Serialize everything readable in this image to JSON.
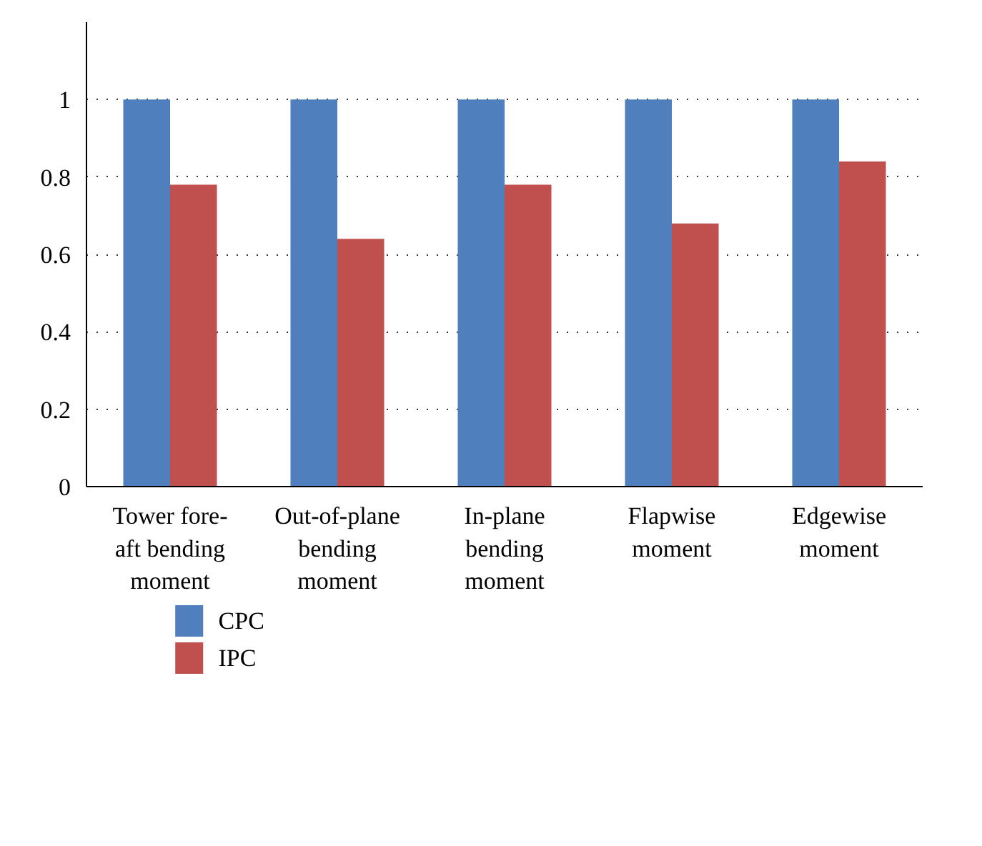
{
  "chart_data": {
    "type": "bar",
    "categories": [
      "Tower fore-aft bending moment",
      "Out-of-plane bending moment",
      "In-plane bending moment",
      "Flapwise moment",
      "Edgewise moment"
    ],
    "series": [
      {
        "name": "CPC",
        "color": "#4f7fbc",
        "values": [
          1,
          1,
          1,
          1,
          1
        ]
      },
      {
        "name": "IPC",
        "color": "#c0504d",
        "values": [
          0.78,
          0.64,
          0.78,
          0.68,
          0.84
        ]
      }
    ],
    "ylim": [
      0,
      1.2
    ],
    "yticks": [
      0,
      0.2,
      0.4,
      0.6,
      0.8,
      1
    ],
    "grid": "y",
    "legend": "bottom left"
  }
}
